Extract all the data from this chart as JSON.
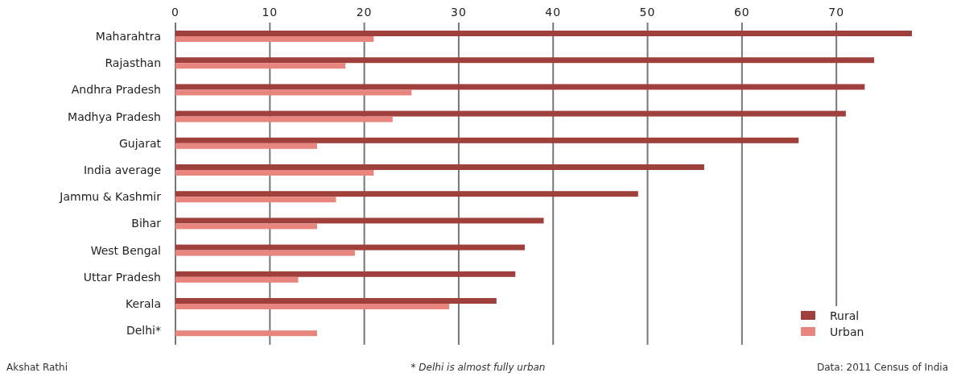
{
  "chart_data": {
    "type": "bar",
    "orientation": "horizontal",
    "categories": [
      "Maharahtra",
      "Rajasthan",
      "Andhra Pradesh",
      "Madhya Pradesh",
      "Gujarat",
      "India average",
      "Jammu & Kashmir",
      "Bihar",
      "West Bengal",
      "Uttar Pradesh",
      "Kerala",
      "Delhi*"
    ],
    "series": [
      {
        "name": "Rural",
        "color": "#a0403c",
        "values": [
          78,
          74,
          73,
          71,
          66,
          56,
          49,
          39,
          37,
          36,
          34,
          null
        ]
      },
      {
        "name": "Urban",
        "color": "#e8857e",
        "values": [
          21,
          18,
          25,
          23,
          15,
          21,
          17,
          15,
          19,
          13,
          29,
          15
        ]
      }
    ],
    "xlim": [
      0,
      78
    ],
    "xticks": [
      0,
      10,
      20,
      30,
      40,
      50,
      60,
      70
    ],
    "grid": "x",
    "legend": "bottom right",
    "annotations": [
      "Akshat Rathi",
      "* Delhi is almost fully urban",
      "Data: 2011 Census of India"
    ]
  }
}
